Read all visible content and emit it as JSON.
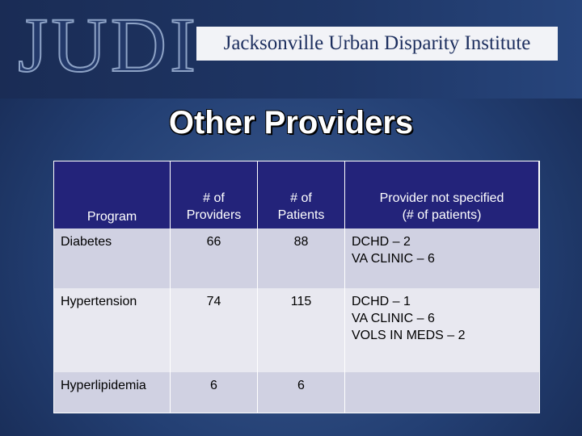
{
  "header": {
    "logo": "JUDI",
    "name": "Jacksonville Urban Disparity Institute"
  },
  "title": "Other Providers",
  "table": {
    "columns": [
      [
        "Program"
      ],
      [
        "# of",
        "Providers"
      ],
      [
        "# of",
        "Patients"
      ],
      [
        "Provider not specified",
        "(# of patients)"
      ]
    ],
    "rows": [
      [
        [
          "Diabetes"
        ],
        [
          66
        ],
        [
          88
        ],
        [
          "DCHD – 2",
          "VA CLINIC – 6"
        ]
      ],
      [
        [
          "Hypertension"
        ],
        [
          74
        ],
        [
          115
        ],
        [
          "DCHD – 1",
          "VA CLINIC – 6",
          "VOLS IN MEDS – 2"
        ]
      ],
      [
        [
          "Hyperlipidemia"
        ],
        [
          6
        ],
        [
          6
        ],
        []
      ]
    ]
  }
}
